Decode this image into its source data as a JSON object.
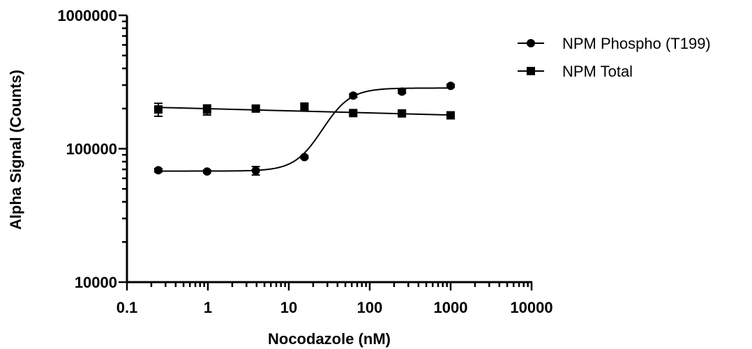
{
  "chart_data": {
    "type": "scatter",
    "title": "",
    "xlabel": "Nocodazole (nM)",
    "ylabel": "Alpha Signal (Counts)",
    "xscale": "log",
    "yscale": "log",
    "xlim": [
      0.1,
      10000
    ],
    "ylim": [
      10000,
      1000000
    ],
    "xticks": [
      {
        "value": 0.1,
        "label": "0.1"
      },
      {
        "value": 1,
        "label": "1"
      },
      {
        "value": 10,
        "label": "10"
      },
      {
        "value": 100,
        "label": "100"
      },
      {
        "value": 1000,
        "label": "1000"
      },
      {
        "value": 10000,
        "label": "10000"
      }
    ],
    "yticks": [
      {
        "value": 10000,
        "label": "10000"
      },
      {
        "value": 100000,
        "label": "100000"
      },
      {
        "value": 1000000,
        "label": "1000000"
      }
    ],
    "grid": false,
    "legend_position": "right",
    "series": [
      {
        "name": "NPM Phospho (T199)",
        "marker": "circle",
        "color": "#000000",
        "points": [
          {
            "x": 0.244,
            "y": 69000,
            "err": 2000
          },
          {
            "x": 0.977,
            "y": 67500,
            "err": 1500
          },
          {
            "x": 3.91,
            "y": 68500,
            "err": 5000
          },
          {
            "x": 15.6,
            "y": 86500,
            "err": 2000
          },
          {
            "x": 62.5,
            "y": 250000,
            "err": 8000
          },
          {
            "x": 250,
            "y": 268000,
            "err": 8000
          },
          {
            "x": 1000,
            "y": 296000,
            "err": 8000
          }
        ],
        "fit": {
          "model": "sigmoidal",
          "bottom": 68000,
          "top": 285000,
          "ec50": 26,
          "hill": 2.5
        }
      },
      {
        "name": "NPM Total",
        "marker": "square",
        "color": "#000000",
        "points": [
          {
            "x": 0.244,
            "y": 197000,
            "err": 22000
          },
          {
            "x": 0.977,
            "y": 196000,
            "err": 17000
          },
          {
            "x": 3.91,
            "y": 200000,
            "err": 8000
          },
          {
            "x": 15.6,
            "y": 207000,
            "err": 8000
          },
          {
            "x": 62.5,
            "y": 185000,
            "err": 6000
          },
          {
            "x": 250,
            "y": 184000,
            "err": 6000
          },
          {
            "x": 1000,
            "y": 178000,
            "err": 6000
          }
        ],
        "fit": {
          "model": "linear-log",
          "y_start": 204000,
          "y_end": 179000
        }
      }
    ]
  }
}
